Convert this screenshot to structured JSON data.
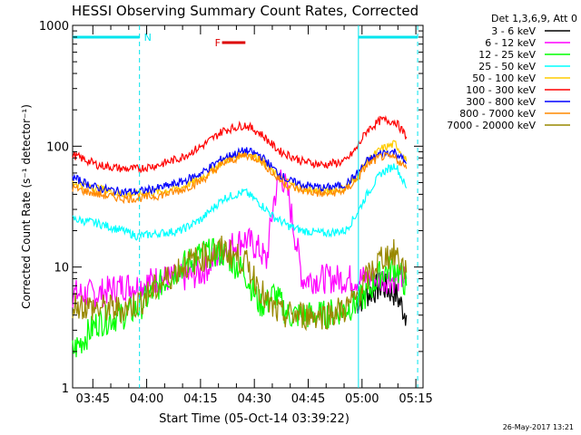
{
  "chart_data": {
    "type": "line",
    "title": "HESSI Observing Summary Count Rates, Corrected",
    "xlabel": "Start Time (05-Oct-14 03:39:22)",
    "ylabel": "Corrected Count Rate (s⁻¹ detector⁻¹)",
    "y_scale": "log",
    "ylim": [
      1,
      1000
    ],
    "xlim": [
      "03:39:22",
      "05:17:00"
    ],
    "x_ticks": [
      "03:45",
      "04:00",
      "04:15",
      "04:30",
      "04:45",
      "05:00",
      "05:15"
    ],
    "y_ticks": [
      "1",
      "10",
      "100",
      "1000"
    ],
    "legend_position": "right",
    "legend_title": "Det 1,3,6,9, Att 0",
    "date_stamp": "26-May-2017 13:21",
    "annotations": [
      {
        "text": "N",
        "color": "#00e5ee",
        "span": [
          "03:39:22",
          "03:58:00"
        ]
      },
      {
        "text": "F",
        "color": "#dd0000",
        "span": [
          "04:21:00",
          "04:27:30"
        ]
      },
      {
        "text": "",
        "color": "#00e5ee",
        "span": [
          "04:59:00",
          "05:15:30"
        ]
      }
    ],
    "night_boundaries": [
      "03:58:00",
      "04:59:00",
      "05:15:30"
    ],
    "x_minutes": [
      0,
      7,
      14,
      18,
      24,
      30,
      36,
      42,
      48,
      52,
      54,
      56,
      58,
      60,
      64,
      70,
      76,
      79,
      82,
      86,
      90,
      93
    ],
    "series": [
      {
        "name": "3 - 6 keV",
        "color": "#000000",
        "values": [
          null,
          null,
          null,
          null,
          null,
          null,
          null,
          null,
          null,
          null,
          null,
          null,
          null,
          null,
          null,
          null,
          null,
          5,
          6,
          7,
          6,
          4
        ]
      },
      {
        "name": "6 - 12 keV",
        "color": "#ff00ff",
        "values": [
          6,
          6,
          7,
          7,
          8,
          8,
          9,
          14,
          17,
          14,
          11,
          35,
          60,
          40,
          8,
          8,
          8,
          8,
          8,
          8,
          8,
          8
        ]
      },
      {
        "name": "12 - 25 keV",
        "color": "#00ff00",
        "values": [
          2,
          3.5,
          4,
          4.5,
          7,
          10,
          13,
          13,
          9,
          5,
          5,
          6,
          5,
          4,
          4,
          4,
          4.5,
          5,
          6,
          9,
          10,
          7
        ]
      },
      {
        "name": "25 - 50 keV",
        "color": "#00ffff",
        "values": [
          25,
          23,
          20,
          18,
          19,
          20,
          25,
          37,
          42,
          34,
          30,
          26,
          24,
          22,
          20,
          19,
          20,
          27,
          40,
          60,
          70,
          45
        ]
      },
      {
        "name": "50 - 100 keV",
        "color": "#ffcc00",
        "values": [
          50,
          45,
          40,
          40,
          42,
          45,
          55,
          75,
          88,
          80,
          70,
          60,
          55,
          50,
          45,
          42,
          45,
          55,
          75,
          95,
          105,
          75
        ]
      },
      {
        "name": "100 - 300 keV",
        "color": "#ff0000",
        "values": [
          85,
          70,
          65,
          65,
          70,
          80,
          100,
          135,
          150,
          130,
          115,
          100,
          90,
          85,
          75,
          70,
          75,
          95,
          135,
          165,
          160,
          120
        ]
      },
      {
        "name": "300 - 800 keV",
        "color": "#0000ff",
        "values": [
          55,
          45,
          42,
          42,
          45,
          50,
          60,
          80,
          92,
          85,
          75,
          65,
          58,
          52,
          48,
          45,
          48,
          58,
          75,
          88,
          90,
          72
        ]
      },
      {
        "name": "800 - 7000 keV",
        "color": "#ff8800",
        "values": [
          45,
          40,
          37,
          37,
          39,
          43,
          52,
          72,
          85,
          78,
          68,
          58,
          52,
          47,
          43,
          40,
          43,
          52,
          70,
          82,
          80,
          65
        ]
      },
      {
        "name": "7000 - 20000 keV",
        "color": "#998800",
        "values": [
          5,
          4.5,
          4.5,
          5,
          7,
          10,
          12,
          14,
          11,
          7,
          5,
          4.5,
          4,
          4,
          4,
          4,
          4.5,
          5.5,
          8,
          12,
          13,
          9
        ]
      }
    ]
  }
}
